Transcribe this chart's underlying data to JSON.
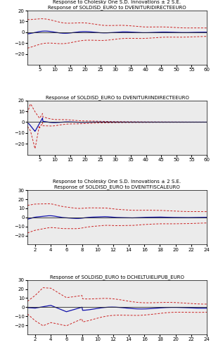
{
  "panel1": {
    "title1": "Response to Cholesky One S.D. Innovations ± 2 S.E.",
    "title2": "Response of SOLDISD_EURO to DVENITURIDIRECTEEURO",
    "xlim": [
      1,
      60
    ],
    "ylim": [
      -30,
      20
    ],
    "yticks": [
      -20,
      -10,
      0,
      10,
      20
    ],
    "xticks": [
      5,
      10,
      15,
      20,
      25,
      30,
      35,
      40,
      45,
      50,
      55,
      60
    ],
    "x_end": 60
  },
  "panel2": {
    "title2": "Response of SOLDISD_EURO to DVENITURIINDIRECTEEURO",
    "xlim": [
      1,
      60
    ],
    "ylim": [
      -30,
      20
    ],
    "yticks": [
      -20,
      -10,
      0,
      10,
      20
    ],
    "xticks": [
      5,
      10,
      15,
      20,
      25,
      30,
      35,
      40,
      45,
      50,
      55,
      60
    ],
    "x_end": 60
  },
  "panel3": {
    "title1": "Response to Cholesky One S.D. Innovations ± 2 S.E.",
    "title2": "Response of SOLDISD_EURO to DVENITFISCALEURO",
    "xlim": [
      1,
      24
    ],
    "ylim": [
      -30,
      30
    ],
    "yticks": [
      -20,
      -10,
      0,
      10,
      20,
      30
    ],
    "xticks": [
      2,
      4,
      6,
      8,
      10,
      12,
      14,
      16,
      18,
      20,
      22,
      24
    ],
    "x_end": 24
  },
  "panel4": {
    "title2": "Response of SOLDISD_EURO to DCHELTUIELIPUB_EURO",
    "xlim": [
      1,
      24
    ],
    "ylim": [
      -30,
      30
    ],
    "yticks": [
      -20,
      -10,
      0,
      10,
      20,
      30
    ],
    "xticks": [
      2,
      4,
      6,
      8,
      10,
      12,
      14,
      16,
      18,
      20,
      22,
      24
    ],
    "x_end": 24
  },
  "blue_color": "#1111aa",
  "red_color": "#cc2222",
  "zero_line_color": "#222222",
  "title_fontsize": 5.0,
  "tick_fontsize": 5.0,
  "bg_color": "#ebebeb"
}
